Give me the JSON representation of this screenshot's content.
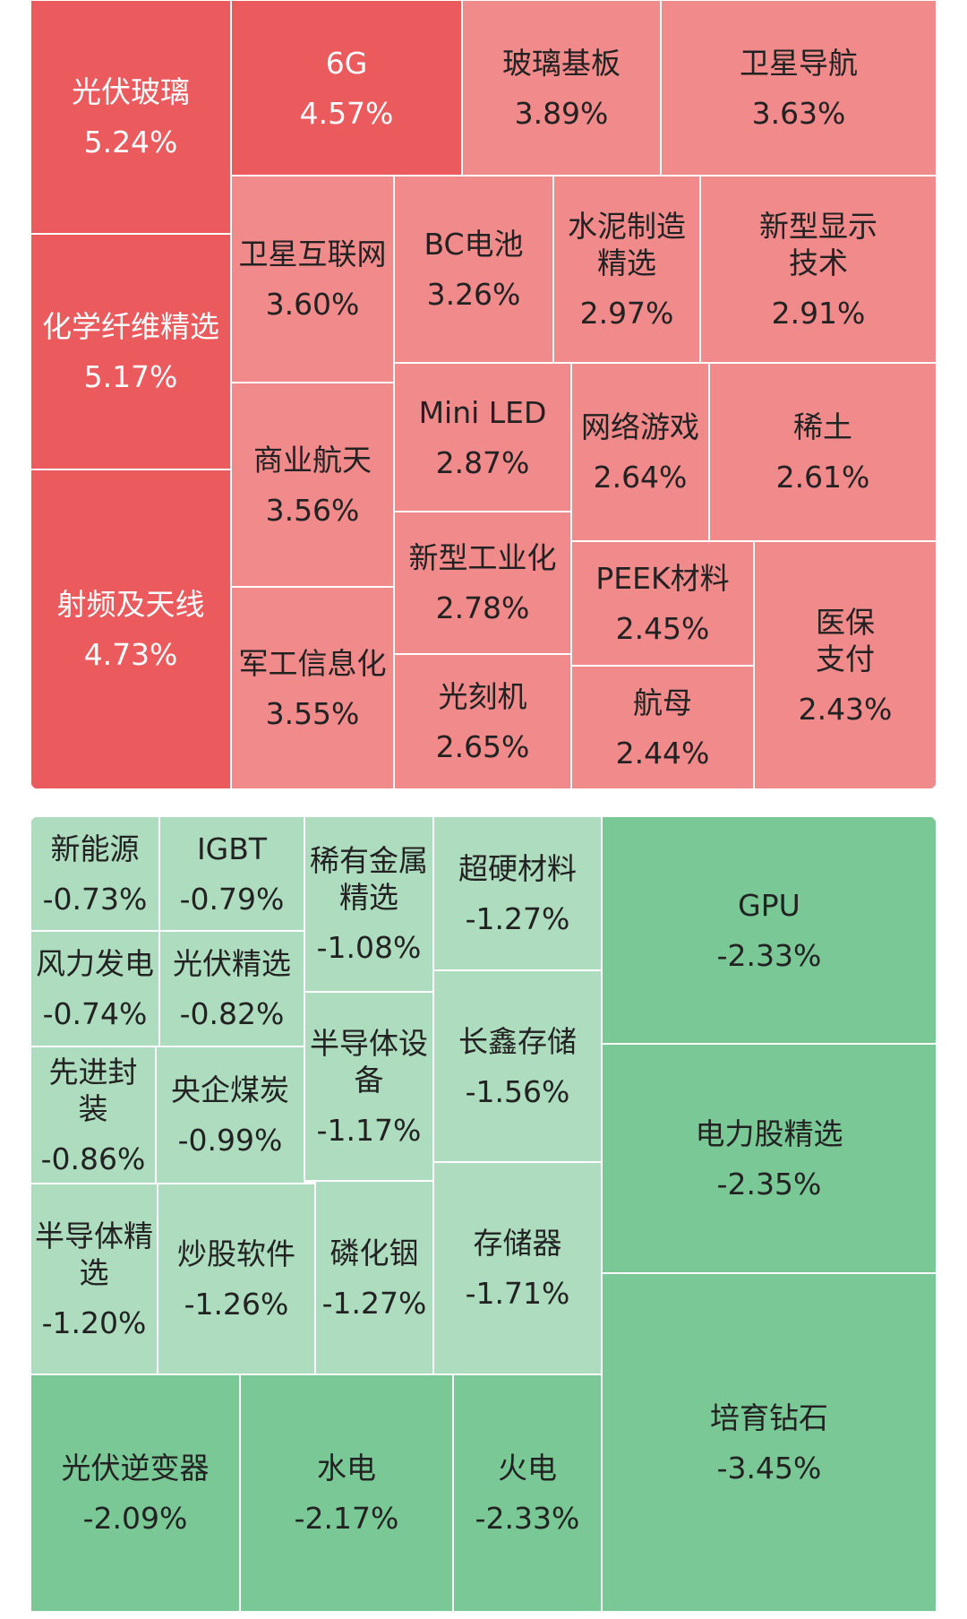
{
  "chart_data": {
    "type": "treemap",
    "title": "",
    "colors": {
      "up_strong": "#EB5A5C",
      "up_light": "#F08A8B",
      "down_light": "#AEDCBF",
      "down_strong": "#79C896"
    },
    "gainers": [
      {
        "name": "光伏玻璃",
        "change": "5.24%",
        "value": 5.24
      },
      {
        "name": "化学纤维精选",
        "change": "5.17%",
        "value": 5.17
      },
      {
        "name": "射频及天线",
        "change": "4.73%",
        "value": 4.73
      },
      {
        "name": "6G",
        "change": "4.57%",
        "value": 4.57
      },
      {
        "name": "玻璃基板",
        "change": "3.89%",
        "value": 3.89
      },
      {
        "name": "卫星导航",
        "change": "3.63%",
        "value": 3.63
      },
      {
        "name": "卫星互联网",
        "change": "3.60%",
        "value": 3.6
      },
      {
        "name": "BC电池",
        "change": "3.26%",
        "value": 3.26
      },
      {
        "name": "水泥制造\n精选",
        "change": "2.97%",
        "value": 2.97
      },
      {
        "name": "新型显示\n技术",
        "change": "2.91%",
        "value": 2.91
      },
      {
        "name": "商业航天",
        "change": "3.56%",
        "value": 3.56
      },
      {
        "name": "Mini LED",
        "change": "2.87%",
        "value": 2.87
      },
      {
        "name": "网络游戏",
        "change": "2.64%",
        "value": 2.64
      },
      {
        "name": "稀土",
        "change": "2.61%",
        "value": 2.61
      },
      {
        "name": "新型工业化",
        "change": "2.78%",
        "value": 2.78
      },
      {
        "name": "PEEK材料",
        "change": "2.45%",
        "value": 2.45
      },
      {
        "name": "医保\n支付",
        "change": "2.43%",
        "value": 2.43
      },
      {
        "name": "军工信息化",
        "change": "3.55%",
        "value": 3.55
      },
      {
        "name": "光刻机",
        "change": "2.65%",
        "value": 2.65
      },
      {
        "name": "航母",
        "change": "2.44%",
        "value": 2.44
      }
    ],
    "losers": [
      {
        "name": "新能源",
        "change": "-0.73%",
        "value": -0.73
      },
      {
        "name": "IGBT",
        "change": "-0.79%",
        "value": -0.79
      },
      {
        "name": "稀有金属\n精选",
        "change": "-1.08%",
        "value": -1.08
      },
      {
        "name": "超硬材料",
        "change": "-1.27%",
        "value": -1.27
      },
      {
        "name": "GPU",
        "change": "-2.33%",
        "value": -2.33
      },
      {
        "name": "风力发电",
        "change": "-0.74%",
        "value": -0.74
      },
      {
        "name": "光伏精选",
        "change": "-0.82%",
        "value": -0.82
      },
      {
        "name": "半导体设\n备",
        "change": "-1.17%",
        "value": -1.17
      },
      {
        "name": "长鑫存储",
        "change": "-1.56%",
        "value": -1.56
      },
      {
        "name": "电力股精选",
        "change": "-2.35%",
        "value": -2.35
      },
      {
        "name": "先进封装",
        "change": "-0.86%",
        "value": -0.86
      },
      {
        "name": "央企煤炭",
        "change": "-0.99%",
        "value": -0.99
      },
      {
        "name": "半导体精\n选",
        "change": "-1.20%",
        "value": -1.2
      },
      {
        "name": "炒股软件",
        "change": "-1.26%",
        "value": -1.26
      },
      {
        "name": "磷化铟",
        "change": "-1.27%",
        "value": -1.27
      },
      {
        "name": "存储器",
        "change": "-1.71%",
        "value": -1.71
      },
      {
        "name": "培育钻石",
        "change": "-3.45%",
        "value": -3.45
      },
      {
        "name": "光伏逆变器",
        "change": "-2.09%",
        "value": -2.09
      },
      {
        "name": "水电",
        "change": "-2.17%",
        "value": -2.17
      },
      {
        "name": "火电",
        "change": "-2.33%",
        "value": -2.33
      }
    ]
  }
}
